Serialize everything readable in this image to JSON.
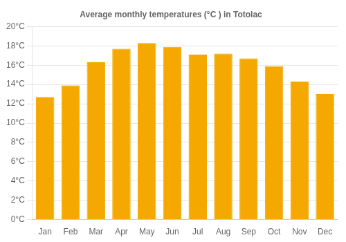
{
  "chart_data": {
    "type": "bar",
    "title": "Average monthly temperatures (°C ) in Totolac",
    "categories": [
      "Jan",
      "Feb",
      "Mar",
      "Apr",
      "May",
      "Jun",
      "Jul",
      "Aug",
      "Sep",
      "Oct",
      "Nov",
      "Dec"
    ],
    "values": [
      12.7,
      13.9,
      16.3,
      17.7,
      18.3,
      17.9,
      17.1,
      17.2,
      16.7,
      15.9,
      14.3,
      13.0
    ],
    "color": "#F5A800",
    "ylim": [
      0,
      20
    ],
    "yticks": [
      {
        "value": 0,
        "label": "0°C"
      },
      {
        "value": 2,
        "label": "2°C"
      },
      {
        "value": 4,
        "label": "4°C"
      },
      {
        "value": 6,
        "label": "6°C"
      },
      {
        "value": 8,
        "label": "8°C"
      },
      {
        "value": 10,
        "label": "10°C"
      },
      {
        "value": 12,
        "label": "12°C"
      },
      {
        "value": 14,
        "label": "14°C"
      },
      {
        "value": 16,
        "label": "16°C"
      },
      {
        "value": 18,
        "label": "18°C"
      },
      {
        "value": 20,
        "label": "20°C"
      }
    ],
    "grid": true
  }
}
